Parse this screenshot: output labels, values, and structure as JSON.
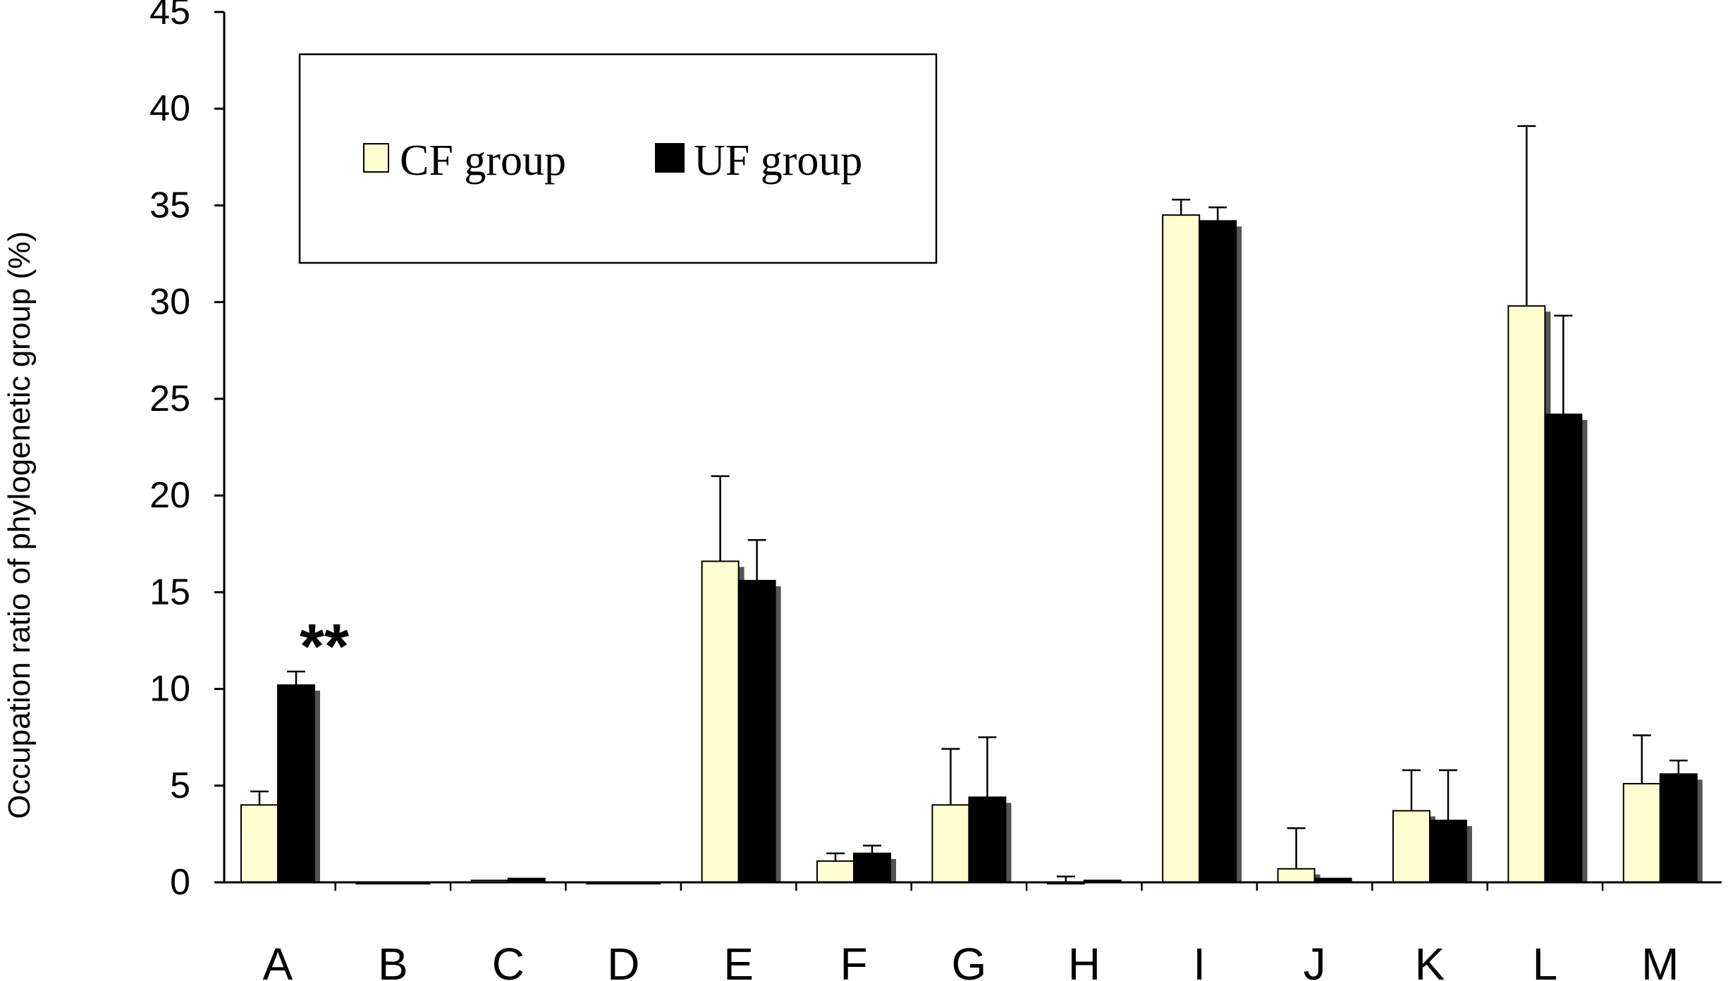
{
  "chart_data": {
    "type": "bar",
    "title": "",
    "xlabel": "",
    "ylabel": "Occupation ratio of phylogenetic group (%)",
    "ylim": [
      0,
      45
    ],
    "yticks": [
      0,
      5,
      10,
      15,
      20,
      25,
      30,
      35,
      40,
      45
    ],
    "grid": false,
    "legend_position": "top-left",
    "categories": [
      "A",
      "B",
      "C",
      "D",
      "E",
      "F",
      "G",
      "H",
      "I",
      "J",
      "K",
      "L",
      "M"
    ],
    "series": [
      {
        "name": "CF group",
        "color": "#ffffd0",
        "values": [
          4.0,
          0.0,
          0.1,
          0.0,
          16.6,
          1.1,
          4.0,
          0.0,
          34.5,
          0.7,
          3.7,
          29.8,
          5.1
        ],
        "errors": [
          0.7,
          0.0,
          0.0,
          0.0,
          4.4,
          0.4,
          2.9,
          0.3,
          0.8,
          2.1,
          2.1,
          9.3,
          2.5
        ]
      },
      {
        "name": "UF group",
        "color": "#000000",
        "values": [
          10.2,
          0.0,
          0.2,
          0.0,
          15.6,
          1.5,
          4.4,
          0.1,
          34.2,
          0.2,
          3.2,
          24.2,
          5.6
        ],
        "errors": [
          0.7,
          0.0,
          0.0,
          0.0,
          2.1,
          0.4,
          3.1,
          0.0,
          0.7,
          0.0,
          2.6,
          5.1,
          0.7
        ]
      }
    ],
    "annotations": [
      {
        "category": "A",
        "text": "**"
      }
    ]
  }
}
